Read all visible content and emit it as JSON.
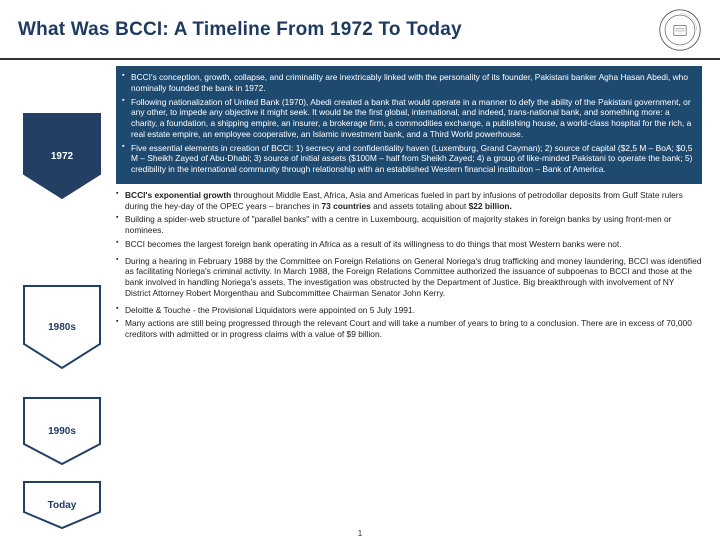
{
  "title": "What Was BCCI: A Timeline From 1972 To Today",
  "page_number": "1",
  "colors": {
    "title": "#1f3a5f",
    "dark_box_bg": "#1f4a70",
    "dark_box_text": "#ffffff",
    "chevron_dark_fill": "#233f63",
    "chevron_border": "#233f63"
  },
  "chevrons": [
    {
      "label": "1972",
      "filled": true
    },
    {
      "label": "1980s",
      "filled": false
    },
    {
      "label": "1990s",
      "filled": false
    },
    {
      "label": "Today",
      "filled": false
    }
  ],
  "sections": {
    "s1972": [
      "BCCI's conception, growth, collapse, and criminality are inextricably linked with the personality of its founder, Pakistani banker Agha Hasan Abedi, who nominally founded the bank in 1972.",
      "Following nationalization of United Bank (1970), Abedi created a bank that would operate in a manner to defy the ability of the Pakistani government, or any other, to impede any objective it might seek. It would be the first global, international, and indeed, trans-national bank, and something more: a charity, a foundation, a shipping empire, an insurer, a brokerage firm, a commodities exchange, a publishing house, a world-class hospital for the rich, a real estate empire, an employee cooperative, an Islamic investment bank, and a Third World powerhouse.",
      "Five essential elements in creation of BCCI: 1) secrecy and confidentiality haven (Luxemburg, Grand Cayman); 2) source of capital ($2,5 M – BoA; $0,5 M – Sheikh Zayed of Abu-Dhabi; 3) source of initial assets ($100M – half from Sheikh Zayed; 4) a group of like-minded Pakistani to operate the bank; 5) credibility in the international community through relationship with an established Western financial institution – Bank of America."
    ],
    "s1980s": [
      "<span class='bold'>BCCI's exponential growth</span> throughout Middle East, Africa, Asia and Americas fueled in part by infusions of petrodollar deposits from Gulf State rulers during the hey-day of the OPEC years – branches in <span class='bold'>73 countries</span> and assets totaling about <span class='bold'>$22 billion.</span>",
      "Building a spider-web structure of \"parallel banks\" with a centre in Luxembourg, acquisition of majority stakes in foreign banks by using front-men or nominees.",
      "BCCI becomes the largest foreign bank operating in Africa as a result of its willingness to do things that most Western banks were not."
    ],
    "s1990s": [
      "During a hearing in February 1988 by the Committee on Foreign Relations on General Noriega's drug trafficking and money laundering, BCCI was identified as facilitating Noriega's criminal activity. In March 1988, the Foreign Relations Committee authorized the issuance of subpoenas to BCCI and those at the bank involved in handling Noriega's assets. The investigation was obstructed by the Department of Justice. Big breakthrough with involvement of NY District Attorney Robert Morgenthau and Subcommittee Chairman Senator John Kerry."
    ],
    "stoday": [
      "Deloitte & Touche - the Provisional Liquidators were appointed on 5 July 1991.",
      "Many actions are still being progressed through the relevant Court and will take a number of years to bring to a conclusion. There are in excess of 70,000 creditors with admitted or in progress claims with a value of $9 billion."
    ]
  }
}
